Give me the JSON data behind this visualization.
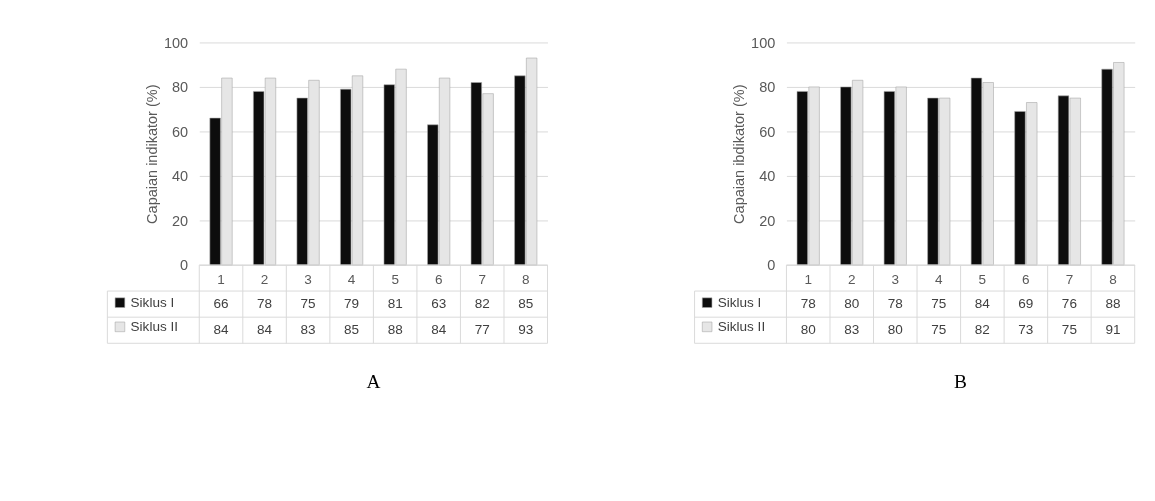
{
  "chart_data": [
    {
      "type": "bar",
      "ylabel": "Capaian indikator (%)",
      "categories": [
        "1",
        "2",
        "3",
        "4",
        "5",
        "6",
        "7",
        "8"
      ],
      "ylim": [
        0,
        100
      ],
      "yticks": [
        0,
        20,
        40,
        60,
        80,
        100
      ],
      "grid": "y",
      "legend": "bottom",
      "data_labels": true,
      "annotations": [
        "A"
      ],
      "series": [
        {
          "name": "Siklus I",
          "color": "#0d0d0d",
          "values": [
            66,
            78,
            75,
            79,
            81,
            63,
            82,
            85
          ]
        },
        {
          "name": "Siklus II",
          "color": "#e6e6e6",
          "values": [
            84,
            84,
            83,
            85,
            88,
            84,
            77,
            93
          ]
        }
      ]
    },
    {
      "type": "bar",
      "ylabel": "Capaian ibdikator (%)",
      "categories": [
        "1",
        "2",
        "3",
        "4",
        "5",
        "6",
        "7",
        "8"
      ],
      "ylim": [
        0,
        100
      ],
      "yticks": [
        0,
        20,
        40,
        60,
        80,
        100
      ],
      "grid": "y",
      "legend": "bottom",
      "data_labels": true,
      "annotations": [
        "B"
      ],
      "series": [
        {
          "name": "Siklus I",
          "color": "#0d0d0d",
          "values": [
            78,
            80,
            78,
            75,
            84,
            69,
            76,
            88
          ]
        },
        {
          "name": "Siklus II",
          "color": "#e6e6e6",
          "values": [
            80,
            83,
            80,
            75,
            82,
            73,
            75,
            91
          ]
        }
      ]
    }
  ]
}
